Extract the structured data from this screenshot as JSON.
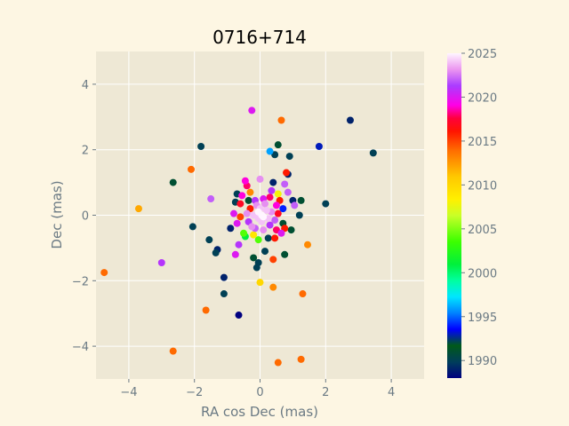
{
  "chart_data": {
    "type": "scatter",
    "title": "0716+714",
    "xlabel": "RA cos Dec (mas)",
    "ylabel": "Dec (mas)",
    "xlim": [
      -5,
      5
    ],
    "ylim": [
      -5,
      5
    ],
    "xticks": [
      -4,
      -2,
      0,
      2,
      4
    ],
    "yticks": [
      -4,
      -2,
      0,
      2,
      4
    ],
    "x_tick_labels": [
      "−4",
      "−2",
      "0",
      "2",
      "4"
    ],
    "y_tick_labels": [
      "−4",
      "−2",
      "0",
      "2",
      "4"
    ],
    "grid": true,
    "colorbar": {
      "label": "",
      "range": [
        1988,
        2025
      ],
      "ticks": [
        1990,
        1995,
        2000,
        2005,
        2010,
        2015,
        2020,
        2025
      ],
      "tick_labels": [
        "1990",
        "1995",
        "2000",
        "2005",
        "2010",
        "2015",
        "2020",
        "2025"
      ],
      "colormap": "gist_ncar"
    },
    "points": [
      {
        "x": -0.25,
        "y": 3.2,
        "year": 2020
      },
      {
        "x": 0.65,
        "y": 2.9,
        "year": 2014
      },
      {
        "x": 2.75,
        "y": 2.9,
        "year": 1989
      },
      {
        "x": -1.8,
        "y": 2.1,
        "year": 1990
      },
      {
        "x": 0.55,
        "y": 2.15,
        "year": 1991
      },
      {
        "x": 1.8,
        "y": 2.1,
        "year": 1993
      },
      {
        "x": 0.3,
        "y": 1.95,
        "year": 1996
      },
      {
        "x": 0.45,
        "y": 1.85,
        "year": 1990
      },
      {
        "x": 0.9,
        "y": 1.8,
        "year": 1990
      },
      {
        "x": 3.45,
        "y": 1.9,
        "year": 1990
      },
      {
        "x": -2.1,
        "y": 1.4,
        "year": 2014
      },
      {
        "x": 0.8,
        "y": 1.3,
        "year": 2016
      },
      {
        "x": 0.85,
        "y": 1.25,
        "year": 1989
      },
      {
        "x": -2.65,
        "y": 1.0,
        "year": 1991
      },
      {
        "x": 0.4,
        "y": 1.0,
        "year": 1989
      },
      {
        "x": 0.75,
        "y": 0.95,
        "year": 2022
      },
      {
        "x": -0.45,
        "y": 1.05,
        "year": 2019
      },
      {
        "x": -0.4,
        "y": 0.9,
        "year": 2018
      },
      {
        "x": 0.0,
        "y": 1.1,
        "year": 2023
      },
      {
        "x": 0.85,
        "y": 0.7,
        "year": 2022
      },
      {
        "x": -1.5,
        "y": 0.5,
        "year": 2022
      },
      {
        "x": -0.7,
        "y": 0.65,
        "year": 1990
      },
      {
        "x": -0.75,
        "y": 0.4,
        "year": 1990
      },
      {
        "x": -0.6,
        "y": 0.35,
        "year": 2017
      },
      {
        "x": 1.25,
        "y": 0.45,
        "year": 1991
      },
      {
        "x": 1.0,
        "y": 0.45,
        "year": 1989
      },
      {
        "x": 1.05,
        "y": 0.3,
        "year": 2022
      },
      {
        "x": 2.0,
        "y": 0.35,
        "year": 1990
      },
      {
        "x": -3.7,
        "y": 0.2,
        "year": 2012
      },
      {
        "x": 1.2,
        "y": 0.0,
        "year": 1990
      },
      {
        "x": -0.8,
        "y": 0.05,
        "year": 2020
      },
      {
        "x": -0.6,
        "y": -0.05,
        "year": 2015
      },
      {
        "x": -2.05,
        "y": -0.35,
        "year": 1990
      },
      {
        "x": -0.9,
        "y": -0.4,
        "year": 1989
      },
      {
        "x": 0.7,
        "y": -0.25,
        "year": 1991
      },
      {
        "x": 0.95,
        "y": -0.45,
        "year": 1991
      },
      {
        "x": 0.75,
        "y": -0.4,
        "year": 2016
      },
      {
        "x": 0.5,
        "y": -0.45,
        "year": 2018
      },
      {
        "x": 0.45,
        "y": -0.7,
        "year": 2016
      },
      {
        "x": 0.25,
        "y": -0.7,
        "year": 1990
      },
      {
        "x": -0.5,
        "y": -0.55,
        "year": 2004
      },
      {
        "x": -0.45,
        "y": -0.65,
        "year": 2001
      },
      {
        "x": -0.05,
        "y": -0.75,
        "year": 2004
      },
      {
        "x": -0.65,
        "y": -0.9,
        "year": 2021
      },
      {
        "x": -1.55,
        "y": -0.75,
        "year": 1990
      },
      {
        "x": -1.3,
        "y": -1.05,
        "year": 1989
      },
      {
        "x": -1.35,
        "y": -1.15,
        "year": 1990
      },
      {
        "x": -0.75,
        "y": -1.2,
        "year": 2020
      },
      {
        "x": -0.2,
        "y": -1.3,
        "year": 1991
      },
      {
        "x": 0.15,
        "y": -1.1,
        "year": 1990
      },
      {
        "x": 0.4,
        "y": -1.35,
        "year": 2015
      },
      {
        "x": 0.75,
        "y": -1.2,
        "year": 1991
      },
      {
        "x": 1.45,
        "y": -0.9,
        "year": 2013
      },
      {
        "x": -3.0,
        "y": -1.45,
        "year": 2021
      },
      {
        "x": -0.05,
        "y": -1.45,
        "year": 1990
      },
      {
        "x": -0.1,
        "y": -1.6,
        "year": 1990
      },
      {
        "x": -4.75,
        "y": -1.75,
        "year": 2014
      },
      {
        "x": -1.1,
        "y": -1.9,
        "year": 1989
      },
      {
        "x": 0.0,
        "y": -2.05,
        "year": 2010
      },
      {
        "x": 0.4,
        "y": -2.2,
        "year": 2013
      },
      {
        "x": -1.1,
        "y": -2.4,
        "year": 1990
      },
      {
        "x": 1.3,
        "y": -2.4,
        "year": 2014
      },
      {
        "x": -1.65,
        "y": -2.9,
        "year": 2014
      },
      {
        "x": -0.65,
        "y": -3.05,
        "year": 1988
      },
      {
        "x": -2.65,
        "y": -4.15,
        "year": 2014
      },
      {
        "x": 0.55,
        "y": -4.5,
        "year": 2014
      },
      {
        "x": 1.25,
        "y": -4.4,
        "year": 2014
      },
      {
        "x": -0.3,
        "y": 0.2,
        "year": 2016
      },
      {
        "x": -0.15,
        "y": 0.45,
        "year": 2021
      },
      {
        "x": 0.1,
        "y": 0.5,
        "year": 2020
      },
      {
        "x": 0.3,
        "y": 0.55,
        "year": 2018
      },
      {
        "x": 0.5,
        "y": 0.3,
        "year": 2019
      },
      {
        "x": 0.55,
        "y": 0.05,
        "year": 2017
      },
      {
        "x": 0.45,
        "y": -0.15,
        "year": 2022
      },
      {
        "x": 0.3,
        "y": -0.3,
        "year": 2021
      },
      {
        "x": 0.1,
        "y": -0.45,
        "year": 2023
      },
      {
        "x": -0.15,
        "y": -0.4,
        "year": 2022
      },
      {
        "x": -0.35,
        "y": -0.2,
        "year": 2021
      },
      {
        "x": -0.4,
        "y": 0.05,
        "year": 2023
      },
      {
        "x": -0.2,
        "y": 0.0,
        "year": 2024
      },
      {
        "x": 0.0,
        "y": 0.2,
        "year": 2024
      },
      {
        "x": 0.2,
        "y": 0.15,
        "year": 2024
      },
      {
        "x": 0.25,
        "y": -0.1,
        "year": 2024
      },
      {
        "x": 0.05,
        "y": -0.2,
        "year": 2024
      },
      {
        "x": -0.1,
        "y": 0.3,
        "year": 2023
      },
      {
        "x": 0.15,
        "y": 0.35,
        "year": 2023
      },
      {
        "x": 0.35,
        "y": 0.1,
        "year": 2023
      },
      {
        "x": -0.25,
        "y": -0.35,
        "year": 2023
      },
      {
        "x": 0.05,
        "y": 0.0,
        "year": 2025
      },
      {
        "x": -0.05,
        "y": 0.1,
        "year": 2025
      },
      {
        "x": 0.1,
        "y": -0.05,
        "year": 2025
      },
      {
        "x": -0.05,
        "y": -0.1,
        "year": 2024
      },
      {
        "x": 0.6,
        "y": 0.45,
        "year": 2016
      },
      {
        "x": -0.55,
        "y": 0.6,
        "year": 2019
      },
      {
        "x": 0.65,
        "y": -0.55,
        "year": 2020
      },
      {
        "x": -0.7,
        "y": -0.25,
        "year": 2020
      },
      {
        "x": 0.35,
        "y": 0.75,
        "year": 2021
      },
      {
        "x": -0.3,
        "y": 0.7,
        "year": 2013
      },
      {
        "x": 0.55,
        "y": 0.65,
        "year": 2008
      },
      {
        "x": -0.2,
        "y": -0.6,
        "year": 2009
      },
      {
        "x": -0.35,
        "y": 0.45,
        "year": 1991
      },
      {
        "x": 0.7,
        "y": 0.2,
        "year": 1994
      }
    ]
  }
}
